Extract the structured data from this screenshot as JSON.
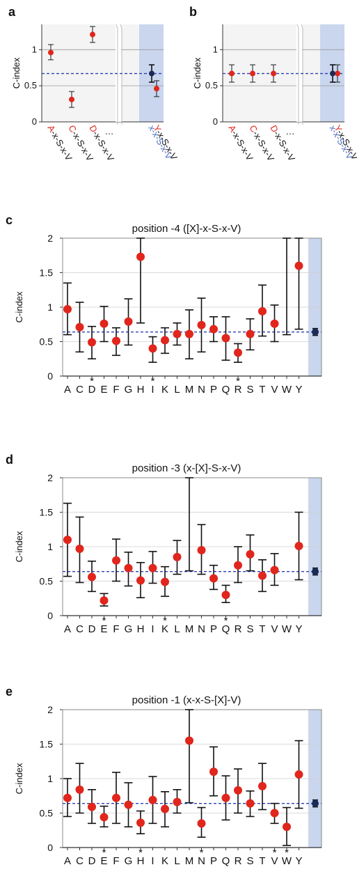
{
  "colors": {
    "dot": "#e0261d",
    "ref_dot": "#1b2a57",
    "ref_line": "#2b3fb0",
    "highlight": "#c9d6ee",
    "error_bar": "#111111",
    "red_label": "#e0261d",
    "blue_label": "#4f6fc0"
  },
  "chart_data": [
    {
      "panel": "a",
      "type": "scatter",
      "ylabel": "C-index",
      "ylim": [
        0,
        1.35
      ],
      "yticks": [
        "0",
        "0.5",
        "1"
      ],
      "break_after": "D-x-S-x-V",
      "ellipsis": "…",
      "categories": [
        {
          "red": "A",
          "rest": "-x-S-x-V",
          "value": 0.96,
          "low": 0.86,
          "high": 1.07
        },
        {
          "red": "C",
          "rest": "-x-S-x-V",
          "value": 0.31,
          "low": 0.2,
          "high": 0.42
        },
        {
          "red": "D",
          "rest": "-x-S-x-V",
          "value": 1.21,
          "low": 1.1,
          "high": 1.32
        },
        {
          "red": "Y",
          "rest": "-x-S-x-V",
          "value": 0.46,
          "low": 0.35,
          "high": 0.57
        }
      ],
      "reference": {
        "label": "x-x-S-x-V",
        "value": 0.67,
        "low": 0.55,
        "high": 0.79
      }
    },
    {
      "panel": "b",
      "type": "scatter",
      "ylabel": "C-index",
      "ylim": [
        0,
        1.35
      ],
      "yticks": [
        "0",
        "0.5",
        "1"
      ],
      "break_after": "D-x-S-x-V",
      "ellipsis": "…",
      "categories": [
        {
          "red": "A",
          "rest": "-x-S-x-V",
          "value": 0.67,
          "low": 0.55,
          "high": 0.79
        },
        {
          "red": "C",
          "rest": "-x-S-x-V",
          "value": 0.67,
          "low": 0.55,
          "high": 0.79
        },
        {
          "red": "D",
          "rest": "-x-S-x-V",
          "value": 0.67,
          "low": 0.55,
          "high": 0.79
        },
        {
          "red": "Y",
          "rest": "-x-S-x-V",
          "value": 0.67,
          "low": 0.55,
          "high": 0.79
        }
      ],
      "reference": {
        "label": "x-x-S-x-V",
        "value": 0.67,
        "low": 0.55,
        "high": 0.79
      }
    },
    {
      "panel": "c",
      "type": "scatter",
      "title": "position -4 ([X]-x-S-x-V)",
      "ylabel": "C-index",
      "ylim": [
        0,
        2
      ],
      "yticks": [
        "0",
        "0.5",
        "1",
        "1.5",
        "2"
      ],
      "reference_value": 0.64,
      "reference_ci": [
        0.59,
        0.69
      ],
      "categories": [
        "A",
        "C",
        "D",
        "E",
        "F",
        "G",
        "H",
        "I",
        "K",
        "L",
        "M",
        "N",
        "P",
        "Q",
        "R",
        "S",
        "T",
        "V",
        "W",
        "Y"
      ],
      "values": [
        0.97,
        0.71,
        0.49,
        0.76,
        0.51,
        0.79,
        1.73,
        0.4,
        0.52,
        0.61,
        0.61,
        0.74,
        0.68,
        0.55,
        0.34,
        0.61,
        0.94,
        0.76,
        null,
        1.6
      ],
      "lower": [
        0.6,
        0.35,
        0.25,
        0.5,
        0.3,
        0.45,
        0.77,
        0.2,
        0.33,
        0.45,
        0.25,
        0.35,
        0.5,
        0.23,
        0.2,
        0.38,
        0.58,
        0.5,
        0.6,
        0.68
      ],
      "upper": [
        1.35,
        1.07,
        0.72,
        1.01,
        0.7,
        1.12,
        2.0,
        0.57,
        0.7,
        0.77,
        0.96,
        1.13,
        0.86,
        0.86,
        0.47,
        0.83,
        1.32,
        1.03,
        2.0,
        2.0
      ],
      "stars": [
        "D",
        "I",
        "R"
      ]
    },
    {
      "panel": "d",
      "type": "scatter",
      "title": "position -3 (x-[X]-S-x-V)",
      "ylabel": "C-index",
      "ylim": [
        0,
        2
      ],
      "yticks": [
        "0",
        "0.5",
        "1",
        "1.5",
        "2"
      ],
      "reference_value": 0.64,
      "reference_ci": [
        0.59,
        0.69
      ],
      "categories": [
        "A",
        "C",
        "D",
        "E",
        "F",
        "G",
        "H",
        "I",
        "K",
        "L",
        "M",
        "N",
        "P",
        "Q",
        "R",
        "S",
        "T",
        "V",
        "W",
        "Y"
      ],
      "values": [
        1.1,
        0.97,
        0.56,
        0.22,
        0.8,
        0.69,
        0.51,
        0.69,
        0.49,
        0.85,
        null,
        0.95,
        0.54,
        0.3,
        0.73,
        0.89,
        0.58,
        0.66,
        null,
        1.01
      ],
      "lower": [
        0.57,
        0.48,
        0.35,
        0.14,
        0.5,
        0.43,
        0.26,
        0.47,
        0.28,
        0.6,
        0.65,
        0.6,
        0.38,
        0.19,
        0.48,
        0.65,
        0.35,
        0.44,
        null,
        0.52
      ],
      "upper": [
        1.63,
        1.43,
        0.79,
        0.32,
        1.11,
        0.92,
        0.77,
        0.93,
        0.71,
        1.09,
        2.0,
        1.32,
        0.73,
        0.44,
        1.0,
        1.17,
        0.81,
        0.9,
        null,
        1.5
      ],
      "stars": [
        "E",
        "K",
        "Q"
      ]
    },
    {
      "panel": "e",
      "type": "scatter",
      "title": "position -1 (x-x-S-[X]-V)",
      "ylabel": "C-index",
      "ylim": [
        0,
        2
      ],
      "yticks": [
        "0",
        "0.5",
        "1",
        "1.5",
        "2"
      ],
      "reference_value": 0.64,
      "reference_ci": [
        0.59,
        0.69
      ],
      "categories": [
        "A",
        "C",
        "D",
        "E",
        "F",
        "G",
        "H",
        "I",
        "K",
        "L",
        "M",
        "N",
        "P",
        "Q",
        "R",
        "S",
        "T",
        "V",
        "W",
        "Y"
      ],
      "values": [
        0.72,
        0.84,
        0.59,
        0.44,
        0.72,
        0.62,
        0.36,
        0.69,
        0.56,
        0.66,
        1.55,
        0.35,
        1.1,
        0.72,
        0.83,
        0.64,
        0.89,
        0.5,
        0.3,
        1.06
      ],
      "lower": [
        0.45,
        0.5,
        0.35,
        0.3,
        0.35,
        0.3,
        0.2,
        0.35,
        0.3,
        0.5,
        0.65,
        0.15,
        0.75,
        0.4,
        0.5,
        0.45,
        0.55,
        0.35,
        0.03,
        0.57
      ],
      "upper": [
        1.0,
        1.22,
        0.84,
        0.6,
        1.09,
        0.94,
        0.53,
        1.03,
        0.81,
        0.84,
        2.0,
        0.58,
        1.46,
        1.04,
        1.14,
        0.82,
        1.22,
        0.64,
        0.58,
        1.55
      ],
      "stars": [
        "E",
        "H",
        "N",
        "V",
        "W"
      ]
    }
  ]
}
